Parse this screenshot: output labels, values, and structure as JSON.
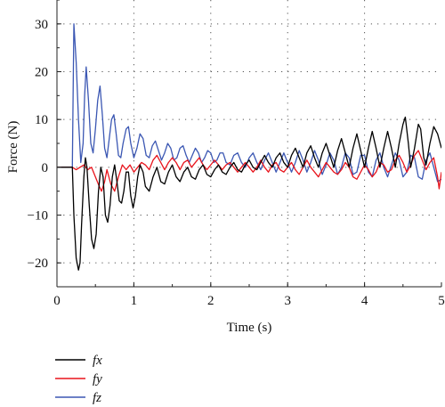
{
  "chart_data": {
    "type": "line",
    "title": "",
    "xlabel": "Time (s)",
    "ylabel": "Force (N)",
    "xlim": [
      0,
      5
    ],
    "ylim": [
      -25,
      35
    ],
    "xticks": [
      "0",
      "1",
      "2",
      "3",
      "4",
      "5"
    ],
    "yticks": [
      "30",
      "20",
      "10",
      "0",
      "−10",
      "−20"
    ],
    "grid": true,
    "legend_position": "below-left",
    "series": [
      {
        "name": "fx",
        "color": "#000000",
        "points": [
          [
            0,
            0
          ],
          [
            0.2,
            0
          ],
          [
            0.22,
            -10
          ],
          [
            0.25,
            -19
          ],
          [
            0.28,
            -21.5
          ],
          [
            0.3,
            -20
          ],
          [
            0.32,
            -12
          ],
          [
            0.35,
            -2
          ],
          [
            0.37,
            2
          ],
          [
            0.39,
            0
          ],
          [
            0.42,
            -8
          ],
          [
            0.45,
            -15
          ],
          [
            0.48,
            -17
          ],
          [
            0.51,
            -14
          ],
          [
            0.54,
            -5
          ],
          [
            0.57,
            0
          ],
          [
            0.6,
            -2
          ],
          [
            0.63,
            -10
          ],
          [
            0.66,
            -11.5
          ],
          [
            0.69,
            -8
          ],
          [
            0.72,
            -2
          ],
          [
            0.75,
            0.5
          ],
          [
            0.78,
            -3
          ],
          [
            0.81,
            -7
          ],
          [
            0.84,
            -7.5
          ],
          [
            0.87,
            -5
          ],
          [
            0.9,
            -1
          ],
          [
            0.93,
            -1
          ],
          [
            0.96,
            -6
          ],
          [
            0.99,
            -8.5
          ],
          [
            1.02,
            -6
          ],
          [
            1.05,
            -2
          ],
          [
            1.08,
            0.5
          ],
          [
            1.12,
            -1
          ],
          [
            1.15,
            -4
          ],
          [
            1.2,
            -5
          ],
          [
            1.25,
            -2
          ],
          [
            1.3,
            0
          ],
          [
            1.35,
            -3
          ],
          [
            1.4,
            -3.5
          ],
          [
            1.45,
            -1
          ],
          [
            1.5,
            0.5
          ],
          [
            1.55,
            -2
          ],
          [
            1.6,
            -3
          ],
          [
            1.65,
            -1
          ],
          [
            1.7,
            0
          ],
          [
            1.75,
            -2
          ],
          [
            1.8,
            -2.5
          ],
          [
            1.85,
            -0.5
          ],
          [
            1.9,
            0.5
          ],
          [
            1.95,
            -1.5
          ],
          [
            2.0,
            -2
          ],
          [
            2.05,
            -0.5
          ],
          [
            2.1,
            0.5
          ],
          [
            2.15,
            -1
          ],
          [
            2.2,
            -1.5
          ],
          [
            2.25,
            0
          ],
          [
            2.3,
            1
          ],
          [
            2.35,
            -0.5
          ],
          [
            2.4,
            -1
          ],
          [
            2.45,
            0.5
          ],
          [
            2.5,
            1.5
          ],
          [
            2.55,
            0
          ],
          [
            2.6,
            -0.5
          ],
          [
            2.65,
            1
          ],
          [
            2.7,
            2.5
          ],
          [
            2.75,
            1
          ],
          [
            2.8,
            0
          ],
          [
            2.85,
            2
          ],
          [
            2.9,
            3
          ],
          [
            2.95,
            1
          ],
          [
            3.0,
            0
          ],
          [
            3.05,
            2.5
          ],
          [
            3.1,
            4
          ],
          [
            3.15,
            2
          ],
          [
            3.2,
            0
          ],
          [
            3.25,
            3
          ],
          [
            3.3,
            4.5
          ],
          [
            3.35,
            2
          ],
          [
            3.4,
            0
          ],
          [
            3.45,
            3
          ],
          [
            3.5,
            5
          ],
          [
            3.55,
            2.5
          ],
          [
            3.6,
            0
          ],
          [
            3.65,
            3.5
          ],
          [
            3.7,
            6
          ],
          [
            3.75,
            3
          ],
          [
            3.8,
            0
          ],
          [
            3.85,
            4
          ],
          [
            3.9,
            7
          ],
          [
            3.95,
            3.5
          ],
          [
            4.0,
            0
          ],
          [
            4.05,
            4
          ],
          [
            4.1,
            7.5
          ],
          [
            4.15,
            4
          ],
          [
            4.2,
            0
          ],
          [
            4.25,
            4
          ],
          [
            4.3,
            7.5
          ],
          [
            4.35,
            4
          ],
          [
            4.4,
            0
          ],
          [
            4.45,
            5
          ],
          [
            4.5,
            9
          ],
          [
            4.53,
            10.5
          ],
          [
            4.57,
            5
          ],
          [
            4.6,
            0
          ],
          [
            4.65,
            4
          ],
          [
            4.7,
            9
          ],
          [
            4.73,
            8
          ],
          [
            4.77,
            2
          ],
          [
            4.8,
            0.5
          ],
          [
            4.85,
            5
          ],
          [
            4.9,
            8.5
          ],
          [
            4.95,
            7
          ],
          [
            5.0,
            4
          ]
        ]
      },
      {
        "name": "fy",
        "color": "#e8141c",
        "points": [
          [
            0,
            0
          ],
          [
            0.2,
            0
          ],
          [
            0.25,
            -0.5
          ],
          [
            0.3,
            0
          ],
          [
            0.35,
            0.5
          ],
          [
            0.4,
            -0.5
          ],
          [
            0.45,
            0
          ],
          [
            0.5,
            -2
          ],
          [
            0.55,
            -4
          ],
          [
            0.58,
            -5
          ],
          [
            0.62,
            -3
          ],
          [
            0.65,
            -0.5
          ],
          [
            0.7,
            -3.5
          ],
          [
            0.75,
            -5
          ],
          [
            0.8,
            -2
          ],
          [
            0.85,
            0.5
          ],
          [
            0.9,
            -0.5
          ],
          [
            0.95,
            0.5
          ],
          [
            1.0,
            -1
          ],
          [
            1.05,
            0
          ],
          [
            1.1,
            1
          ],
          [
            1.15,
            0.5
          ],
          [
            1.2,
            -0.5
          ],
          [
            1.25,
            1.5
          ],
          [
            1.3,
            2.5
          ],
          [
            1.35,
            1
          ],
          [
            1.4,
            -0.5
          ],
          [
            1.45,
            1
          ],
          [
            1.5,
            2
          ],
          [
            1.55,
            1
          ],
          [
            1.6,
            -0.5
          ],
          [
            1.65,
            1
          ],
          [
            1.7,
            1.5
          ],
          [
            1.75,
            0
          ],
          [
            1.8,
            1
          ],
          [
            1.85,
            2
          ],
          [
            1.9,
            0.5
          ],
          [
            1.95,
            -0.5
          ],
          [
            2.0,
            0.5
          ],
          [
            2.05,
            1.5
          ],
          [
            2.1,
            0.5
          ],
          [
            2.15,
            -0.5
          ],
          [
            2.2,
            0.5
          ],
          [
            2.25,
            1
          ],
          [
            2.3,
            0
          ],
          [
            2.35,
            -1
          ],
          [
            2.4,
            0
          ],
          [
            2.45,
            1
          ],
          [
            2.5,
            0
          ],
          [
            2.55,
            -1
          ],
          [
            2.6,
            0
          ],
          [
            2.65,
            1.5
          ],
          [
            2.7,
            0
          ],
          [
            2.75,
            -1
          ],
          [
            2.8,
            0.5
          ],
          [
            2.85,
            1
          ],
          [
            2.9,
            -0.5
          ],
          [
            2.95,
            -1
          ],
          [
            3.0,
            0
          ],
          [
            3.05,
            1
          ],
          [
            3.1,
            -0.5
          ],
          [
            3.15,
            -1.5
          ],
          [
            3.2,
            0
          ],
          [
            3.25,
            1.5
          ],
          [
            3.3,
            0
          ],
          [
            3.35,
            -1
          ],
          [
            3.4,
            -2
          ],
          [
            3.45,
            -0.5
          ],
          [
            3.5,
            1
          ],
          [
            3.55,
            0
          ],
          [
            3.6,
            -1
          ],
          [
            3.65,
            -1.5
          ],
          [
            3.7,
            -0.5
          ],
          [
            3.75,
            1
          ],
          [
            3.8,
            0
          ],
          [
            3.85,
            -2
          ],
          [
            3.9,
            -2.5
          ],
          [
            3.95,
            -1
          ],
          [
            4.0,
            0.5
          ],
          [
            4.05,
            -0.5
          ],
          [
            4.1,
            -2
          ],
          [
            4.15,
            -1
          ],
          [
            4.2,
            1
          ],
          [
            4.25,
            0.5
          ],
          [
            4.3,
            -1
          ],
          [
            4.35,
            -0.5
          ],
          [
            4.4,
            1.5
          ],
          [
            4.45,
            2.5
          ],
          [
            4.5,
            1
          ],
          [
            4.55,
            -1
          ],
          [
            4.6,
            0.5
          ],
          [
            4.65,
            2.5
          ],
          [
            4.7,
            3.5
          ],
          [
            4.75,
            1.5
          ],
          [
            4.8,
            -0.5
          ],
          [
            4.85,
            1
          ],
          [
            4.9,
            2
          ],
          [
            4.95,
            -2
          ],
          [
            4.97,
            -4.5
          ],
          [
            5.0,
            -1
          ]
        ]
      },
      {
        "name": "fz",
        "color": "#3b57b3",
        "points": [
          [
            0,
            0
          ],
          [
            0.2,
            0
          ],
          [
            0.21,
            15
          ],
          [
            0.22,
            30
          ],
          [
            0.25,
            22
          ],
          [
            0.28,
            10
          ],
          [
            0.31,
            1
          ],
          [
            0.34,
            5
          ],
          [
            0.36,
            15
          ],
          [
            0.38,
            21
          ],
          [
            0.41,
            14
          ],
          [
            0.44,
            5
          ],
          [
            0.47,
            3
          ],
          [
            0.5,
            8
          ],
          [
            0.53,
            14
          ],
          [
            0.56,
            17
          ],
          [
            0.59,
            11
          ],
          [
            0.62,
            4
          ],
          [
            0.65,
            2
          ],
          [
            0.68,
            6
          ],
          [
            0.71,
            10
          ],
          [
            0.74,
            11
          ],
          [
            0.77,
            7
          ],
          [
            0.8,
            2.5
          ],
          [
            0.83,
            2
          ],
          [
            0.86,
            5
          ],
          [
            0.9,
            8
          ],
          [
            0.93,
            8.5
          ],
          [
            0.96,
            5
          ],
          [
            1.0,
            2
          ],
          [
            1.04,
            4
          ],
          [
            1.08,
            7
          ],
          [
            1.12,
            6
          ],
          [
            1.16,
            2.5
          ],
          [
            1.2,
            2
          ],
          [
            1.24,
            4.5
          ],
          [
            1.28,
            5.5
          ],
          [
            1.32,
            3.5
          ],
          [
            1.36,
            1.5
          ],
          [
            1.4,
            3
          ],
          [
            1.44,
            5
          ],
          [
            1.48,
            4
          ],
          [
            1.52,
            1.5
          ],
          [
            1.56,
            2
          ],
          [
            1.6,
            4
          ],
          [
            1.64,
            4.5
          ],
          [
            1.68,
            2.5
          ],
          [
            1.72,
            1
          ],
          [
            1.76,
            2.5
          ],
          [
            1.8,
            4
          ],
          [
            1.84,
            3
          ],
          [
            1.88,
            1
          ],
          [
            1.92,
            2
          ],
          [
            1.96,
            3.5
          ],
          [
            2.0,
            3
          ],
          [
            2.04,
            1
          ],
          [
            2.08,
            1.5
          ],
          [
            2.12,
            3
          ],
          [
            2.16,
            3
          ],
          [
            2.2,
            1
          ],
          [
            2.25,
            0.5
          ],
          [
            2.3,
            2.5
          ],
          [
            2.35,
            3
          ],
          [
            2.4,
            1
          ],
          [
            2.45,
            0
          ],
          [
            2.5,
            2
          ],
          [
            2.55,
            3
          ],
          [
            2.6,
            1
          ],
          [
            2.65,
            -0.5
          ],
          [
            2.7,
            1.5
          ],
          [
            2.75,
            3
          ],
          [
            2.8,
            1
          ],
          [
            2.85,
            -1
          ],
          [
            2.9,
            1
          ],
          [
            2.95,
            3
          ],
          [
            3.0,
            1
          ],
          [
            3.05,
            -1
          ],
          [
            3.1,
            1
          ],
          [
            3.15,
            3.5
          ],
          [
            3.2,
            1.5
          ],
          [
            3.25,
            -1
          ],
          [
            3.3,
            1
          ],
          [
            3.35,
            3.5
          ],
          [
            3.4,
            1.5
          ],
          [
            3.45,
            -1.5
          ],
          [
            3.5,
            0.5
          ],
          [
            3.55,
            3
          ],
          [
            3.6,
            1.5
          ],
          [
            3.65,
            -1.5
          ],
          [
            3.7,
            0
          ],
          [
            3.75,
            3
          ],
          [
            3.8,
            2
          ],
          [
            3.85,
            -1.5
          ],
          [
            3.9,
            -1
          ],
          [
            3.95,
            2.5
          ],
          [
            4.0,
            2.5
          ],
          [
            4.05,
            -1
          ],
          [
            4.1,
            -2
          ],
          [
            4.15,
            1.5
          ],
          [
            4.2,
            3
          ],
          [
            4.25,
            0
          ],
          [
            4.3,
            -2
          ],
          [
            4.35,
            0.5
          ],
          [
            4.4,
            3
          ],
          [
            4.45,
            1.5
          ],
          [
            4.5,
            -2
          ],
          [
            4.55,
            -1
          ],
          [
            4.6,
            2.5
          ],
          [
            4.65,
            2
          ],
          [
            4.7,
            -2
          ],
          [
            4.75,
            -2.5
          ],
          [
            4.8,
            1.5
          ],
          [
            4.85,
            3
          ],
          [
            4.9,
            0
          ],
          [
            4.95,
            -3
          ],
          [
            5.0,
            -2.5
          ]
        ]
      }
    ]
  }
}
